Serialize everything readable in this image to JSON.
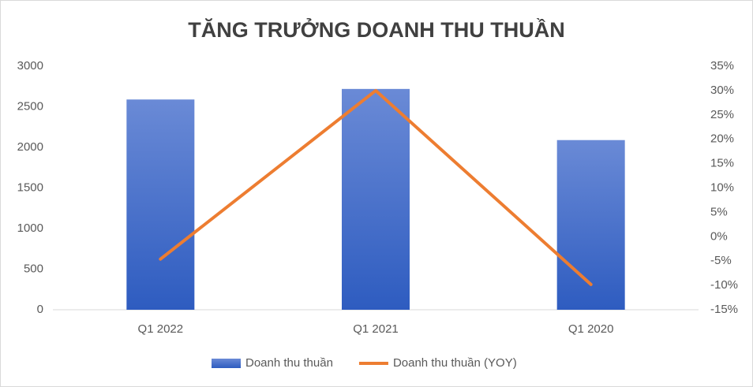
{
  "chart_data": {
    "type": "combo",
    "title": "TĂNG TRƯỞNG DOANH THU THUẦN",
    "categories": [
      "Q1 2022",
      "Q1 2021",
      "Q1 2020"
    ],
    "series": [
      {
        "name": "Doanh thu thuần",
        "type": "bar",
        "color": "#4472c4",
        "values": [
          2590,
          2720,
          2090
        ]
      },
      {
        "name": "Doanh thu thuần (YOY)",
        "type": "line",
        "axis": "y2",
        "color": "#ed7d31",
        "values": [
          -4.6,
          30,
          -9.8
        ]
      }
    ],
    "ylim": [
      0,
      3000
    ],
    "yticks": [
      0,
      500,
      1000,
      1500,
      2000,
      2500,
      3000
    ],
    "y2lim": [
      -15,
      35
    ],
    "y2ticks": [
      {
        "value": -15,
        "label": "-15%"
      },
      {
        "value": -10,
        "label": "-10%"
      },
      {
        "value": -5,
        "label": "-5%"
      },
      {
        "value": 0,
        "label": "0%"
      },
      {
        "value": 5,
        "label": "5%"
      },
      {
        "value": 10,
        "label": "10%"
      },
      {
        "value": 15,
        "label": "15%"
      },
      {
        "value": 20,
        "label": "20%"
      },
      {
        "value": 25,
        "label": "25%"
      },
      {
        "value": 30,
        "label": "30%"
      },
      {
        "value": 35,
        "label": "35%"
      }
    ],
    "grid": false,
    "legend": "bottom"
  }
}
